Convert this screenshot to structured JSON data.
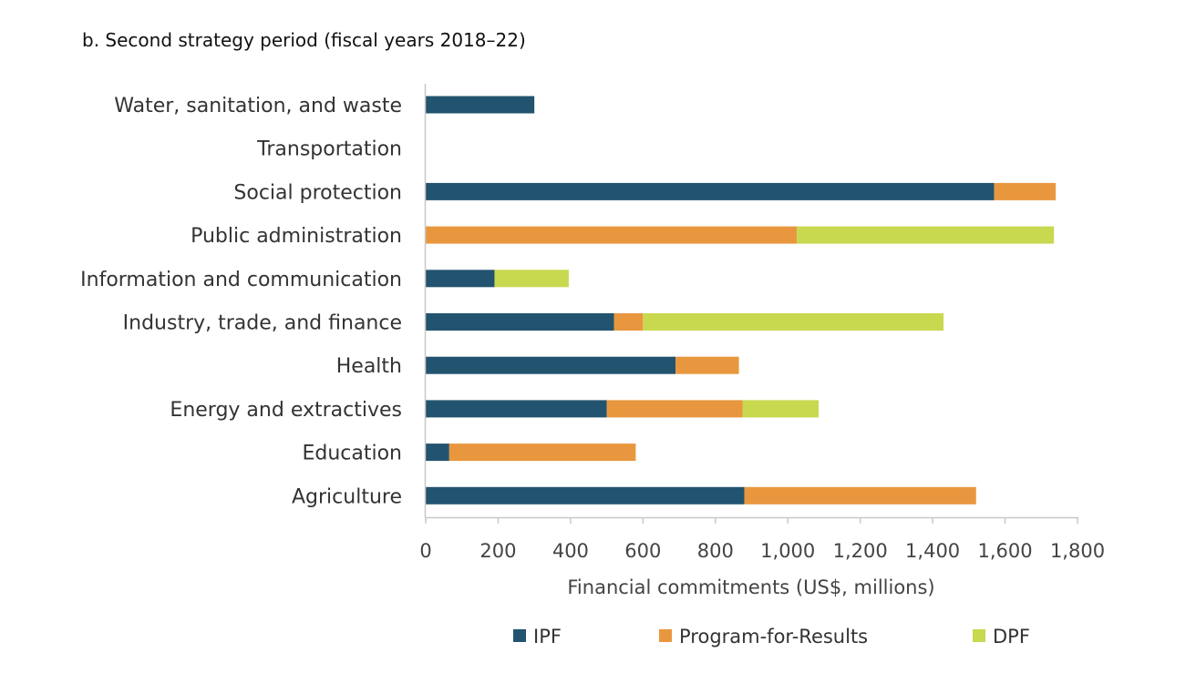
{
  "chart_data": {
    "type": "bar",
    "orientation": "horizontal",
    "stacked": true,
    "title": "b. Second strategy period (fiscal years 2018–22)",
    "xlabel": "Financial commitments (US$, millions)",
    "ylabel": "",
    "xlim": [
      0,
      1800
    ],
    "xticks": [
      0,
      200,
      400,
      600,
      800,
      1000,
      1200,
      1400,
      1600,
      1800
    ],
    "xtick_labels": [
      "0",
      "200",
      "400",
      "600",
      "800",
      "1,000",
      "1,200",
      "1,400",
      "1,600",
      "1,800"
    ],
    "categories": [
      "Water, sanitation, and waste",
      "Transportation",
      "Social protection",
      "Public administration",
      "Information and communication",
      "Industry, trade, and finance",
      "Health",
      "Energy and extractives",
      "Education",
      "Agriculture"
    ],
    "series": [
      {
        "name": "IPF",
        "color": "#23546F",
        "values": [
          300,
          0,
          1570,
          0,
          190,
          520,
          690,
          500,
          65,
          880
        ]
      },
      {
        "name": "Program-for-Results",
        "color": "#E9973E",
        "values": [
          0,
          0,
          170,
          1025,
          0,
          80,
          175,
          375,
          515,
          640
        ]
      },
      {
        "name": "DPF",
        "color": "#C8D84F",
        "values": [
          0,
          0,
          0,
          710,
          205,
          830,
          0,
          210,
          0,
          0
        ]
      }
    ],
    "grid": false,
    "legend_position": "bottom"
  }
}
